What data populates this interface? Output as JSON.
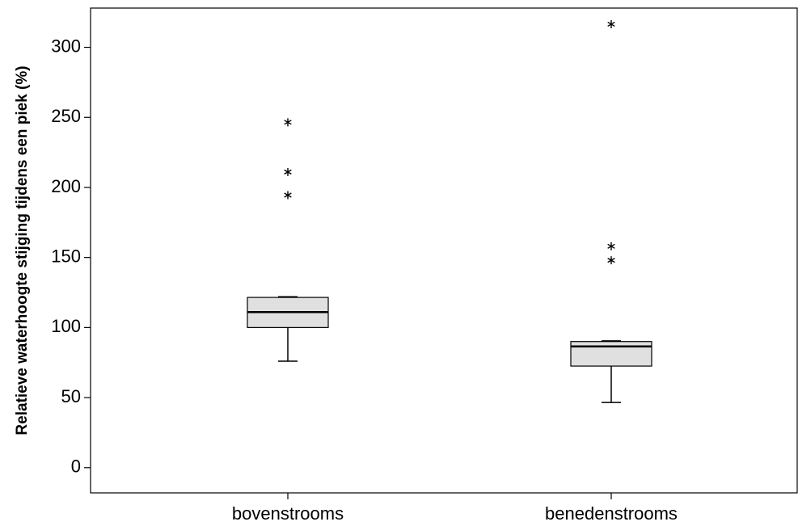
{
  "chart_data": {
    "type": "boxplot",
    "y_label": "Relatieve waterhoogte stijging tijdens een piek (%)",
    "categories": [
      "bovenstrooms",
      "benedenstrooms"
    ],
    "boxes": [
      {
        "whislo": 76,
        "q1": 100,
        "med": 111,
        "q3": 121.5,
        "whishi": 122,
        "outliers": [
          246.5,
          211,
          194.5
        ]
      },
      {
        "whislo": 46.5,
        "q1": 72.5,
        "med": 86.5,
        "q3": 90,
        "whishi": 90.5,
        "outliers": [
          316.5,
          158,
          148
        ]
      }
    ],
    "color": "#e0e0e0",
    "ylim": [
      -18,
      328
    ],
    "yticks": [
      0,
      50,
      100,
      150,
      200,
      250,
      300
    ]
  }
}
